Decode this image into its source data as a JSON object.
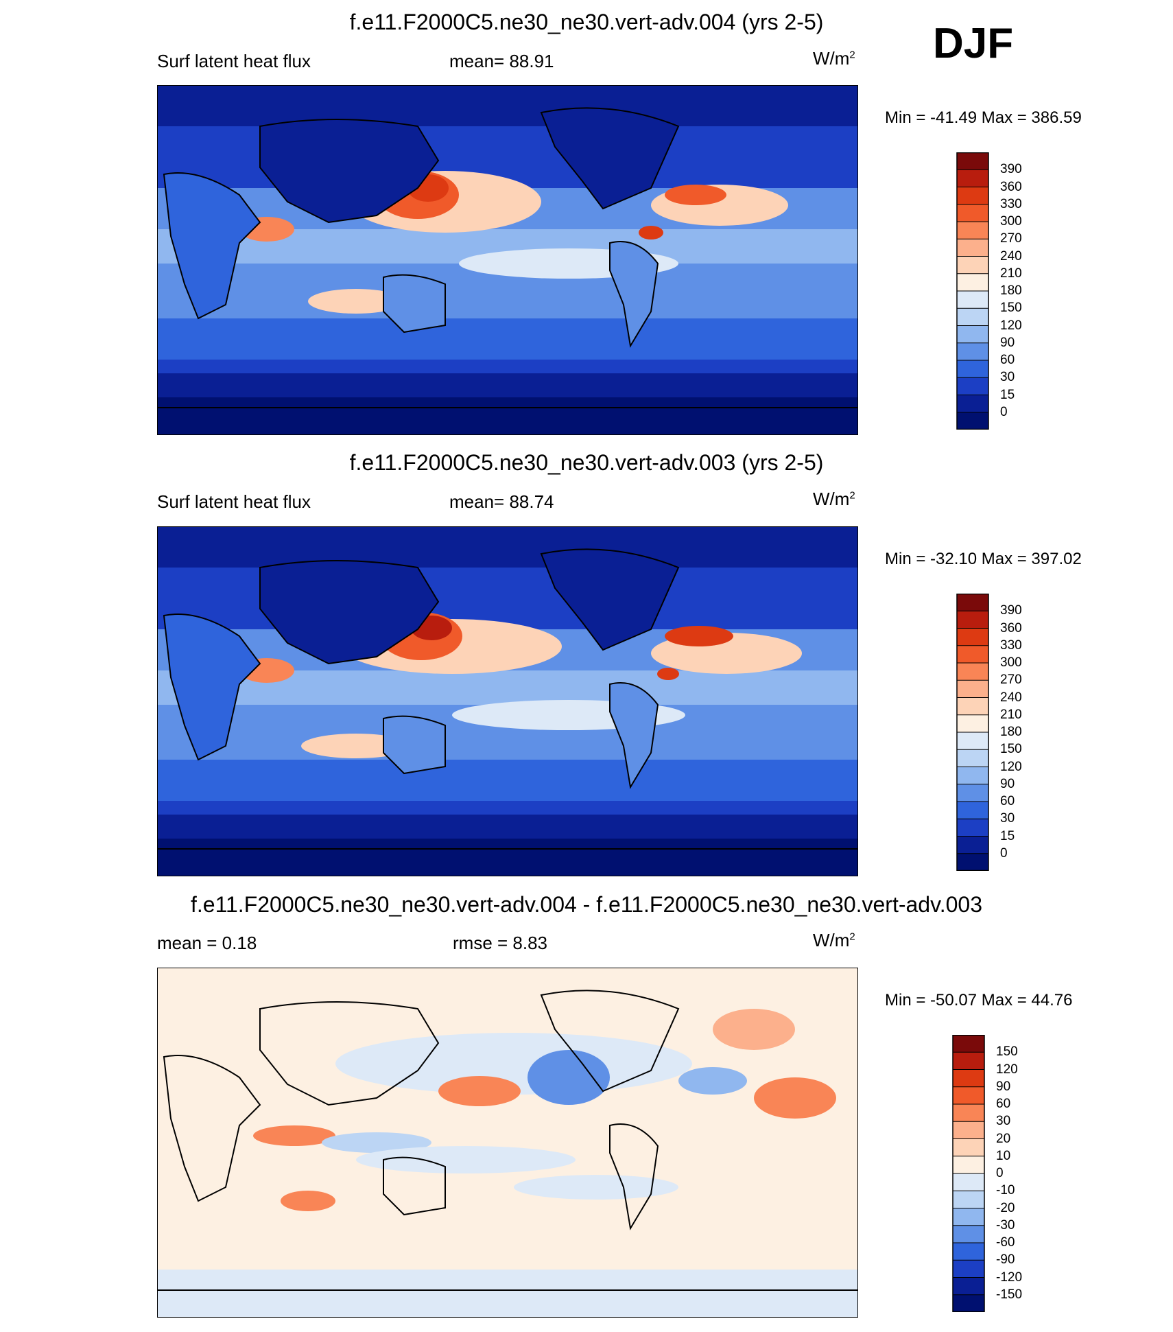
{
  "season": "DJF",
  "panels": [
    {
      "id": "p1",
      "title": "f.e11.F2000C5.ne30_ne30.vert-adv.004 (yrs 2-5)",
      "left_label": "Surf latent heat flux",
      "center_label": "mean=  88.91",
      "units": "W/m",
      "units_sup": "2",
      "minmax": "Min = -41.49 Max = 386.59"
    },
    {
      "id": "p2",
      "title": "f.e11.F2000C5.ne30_ne30.vert-adv.003 (yrs 2-5)",
      "left_label": "Surf latent heat flux",
      "center_label": "mean=  88.74",
      "units": "W/m",
      "units_sup": "2",
      "minmax": "Min = -32.10 Max = 397.02"
    },
    {
      "id": "p3",
      "title": "f.e11.F2000C5.ne30_ne30.vert-adv.004 - f.e11.F2000C5.ne30_ne30.vert-adv.003",
      "left_label": "mean =   0.18",
      "center_label": "rmse =   8.83",
      "units": "W/m",
      "units_sup": "2",
      "minmax": "Min = -50.07 Max =  44.76"
    }
  ],
  "chart_data": [
    {
      "type": "heatmap",
      "title": "f.e11.F2000C5.ne30_ne30.vert-adv.004 (yrs 2-5)",
      "variable": "Surf latent heat flux",
      "units": "W/m2",
      "mean": 88.91,
      "min": -41.49,
      "max": 386.59,
      "colorbar_levels": [
        "390",
        "360",
        "330",
        "300",
        "270",
        "240",
        "210",
        "180",
        "150",
        "120",
        "90",
        "60",
        "30",
        "15",
        "0"
      ],
      "colorbar_colors": [
        "#7a0a0a",
        "#b81d0e",
        "#dd3a12",
        "#f05a2a",
        "#f98556",
        "#fcb08c",
        "#fdd3b7",
        "#fdf0e2",
        "#dde9f7",
        "#bcd5f4",
        "#90b7ef",
        "#5f90e6",
        "#2f64dc",
        "#1c3fc4",
        "#0a1f94",
        "#001070"
      ]
    },
    {
      "type": "heatmap",
      "title": "f.e11.F2000C5.ne30_ne30.vert-adv.003 (yrs 2-5)",
      "variable": "Surf latent heat flux",
      "units": "W/m2",
      "mean": 88.74,
      "min": -32.1,
      "max": 397.02,
      "colorbar_levels": [
        "390",
        "360",
        "330",
        "300",
        "270",
        "240",
        "210",
        "180",
        "150",
        "120",
        "90",
        "60",
        "30",
        "15",
        "0"
      ],
      "colorbar_colors": [
        "#7a0a0a",
        "#b81d0e",
        "#dd3a12",
        "#f05a2a",
        "#f98556",
        "#fcb08c",
        "#fdd3b7",
        "#fdf0e2",
        "#dde9f7",
        "#bcd5f4",
        "#90b7ef",
        "#5f90e6",
        "#2f64dc",
        "#1c3fc4",
        "#0a1f94",
        "#001070"
      ]
    },
    {
      "type": "heatmap",
      "title": "f.e11.F2000C5.ne30_ne30.vert-adv.004 - f.e11.F2000C5.ne30_ne30.vert-adv.003",
      "units": "W/m2",
      "mean": 0.18,
      "rmse": 8.83,
      "min": -50.07,
      "max": 44.76,
      "colorbar_levels": [
        "150",
        "120",
        "90",
        "60",
        "30",
        "20",
        "10",
        "0",
        "-10",
        "-20",
        "-30",
        "-60",
        "-90",
        "-120",
        "-150"
      ],
      "colorbar_colors": [
        "#7a0a0a",
        "#b81d0e",
        "#dd3a12",
        "#f05a2a",
        "#f98556",
        "#fcb08c",
        "#fdd3b7",
        "#fdf0e2",
        "#dde9f7",
        "#bcd5f4",
        "#90b7ef",
        "#5f90e6",
        "#2f64dc",
        "#1c3fc4",
        "#0a1f94",
        "#001070"
      ]
    }
  ]
}
